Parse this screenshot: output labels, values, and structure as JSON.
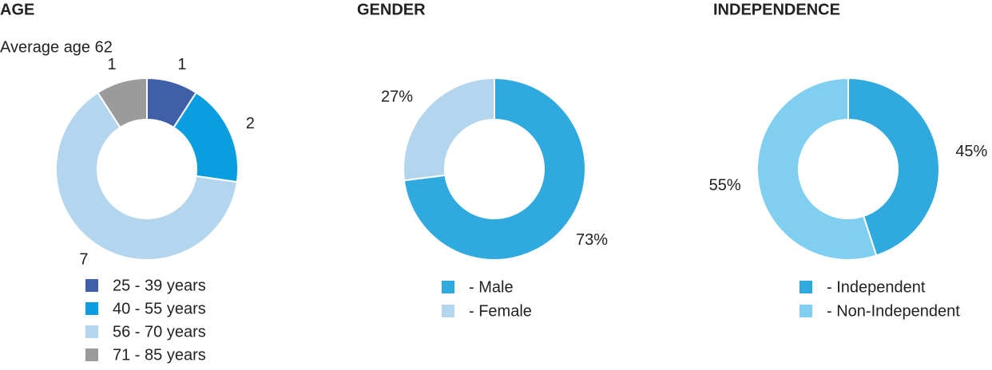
{
  "chart_data": [
    {
      "type": "donut",
      "title": "AGE",
      "subtitle": "Average age 62",
      "categories": [
        "25 - 39 years",
        "40 - 55 years",
        "56 - 70 years",
        "71 - 85 years"
      ],
      "values": [
        1,
        2,
        7,
        1
      ],
      "colors": [
        "#3f5fa8",
        "#0a9ee0",
        "#b3d5ee",
        "#9b9b9b"
      ]
    },
    {
      "type": "donut",
      "title": "GENDER",
      "categories": [
        "- Male",
        "- Female"
      ],
      "values": [
        73,
        27
      ],
      "value_labels": [
        "73%",
        "27%"
      ],
      "colors": [
        "#30aade",
        "#b3d5ee"
      ]
    },
    {
      "type": "donut",
      "title": "INDEPENDENCE",
      "categories": [
        "- Independent",
        "- Non-Independent"
      ],
      "values": [
        45,
        55
      ],
      "value_labels": [
        "45%",
        "55%"
      ],
      "colors": [
        "#30aade",
        "#80cff0"
      ]
    }
  ]
}
